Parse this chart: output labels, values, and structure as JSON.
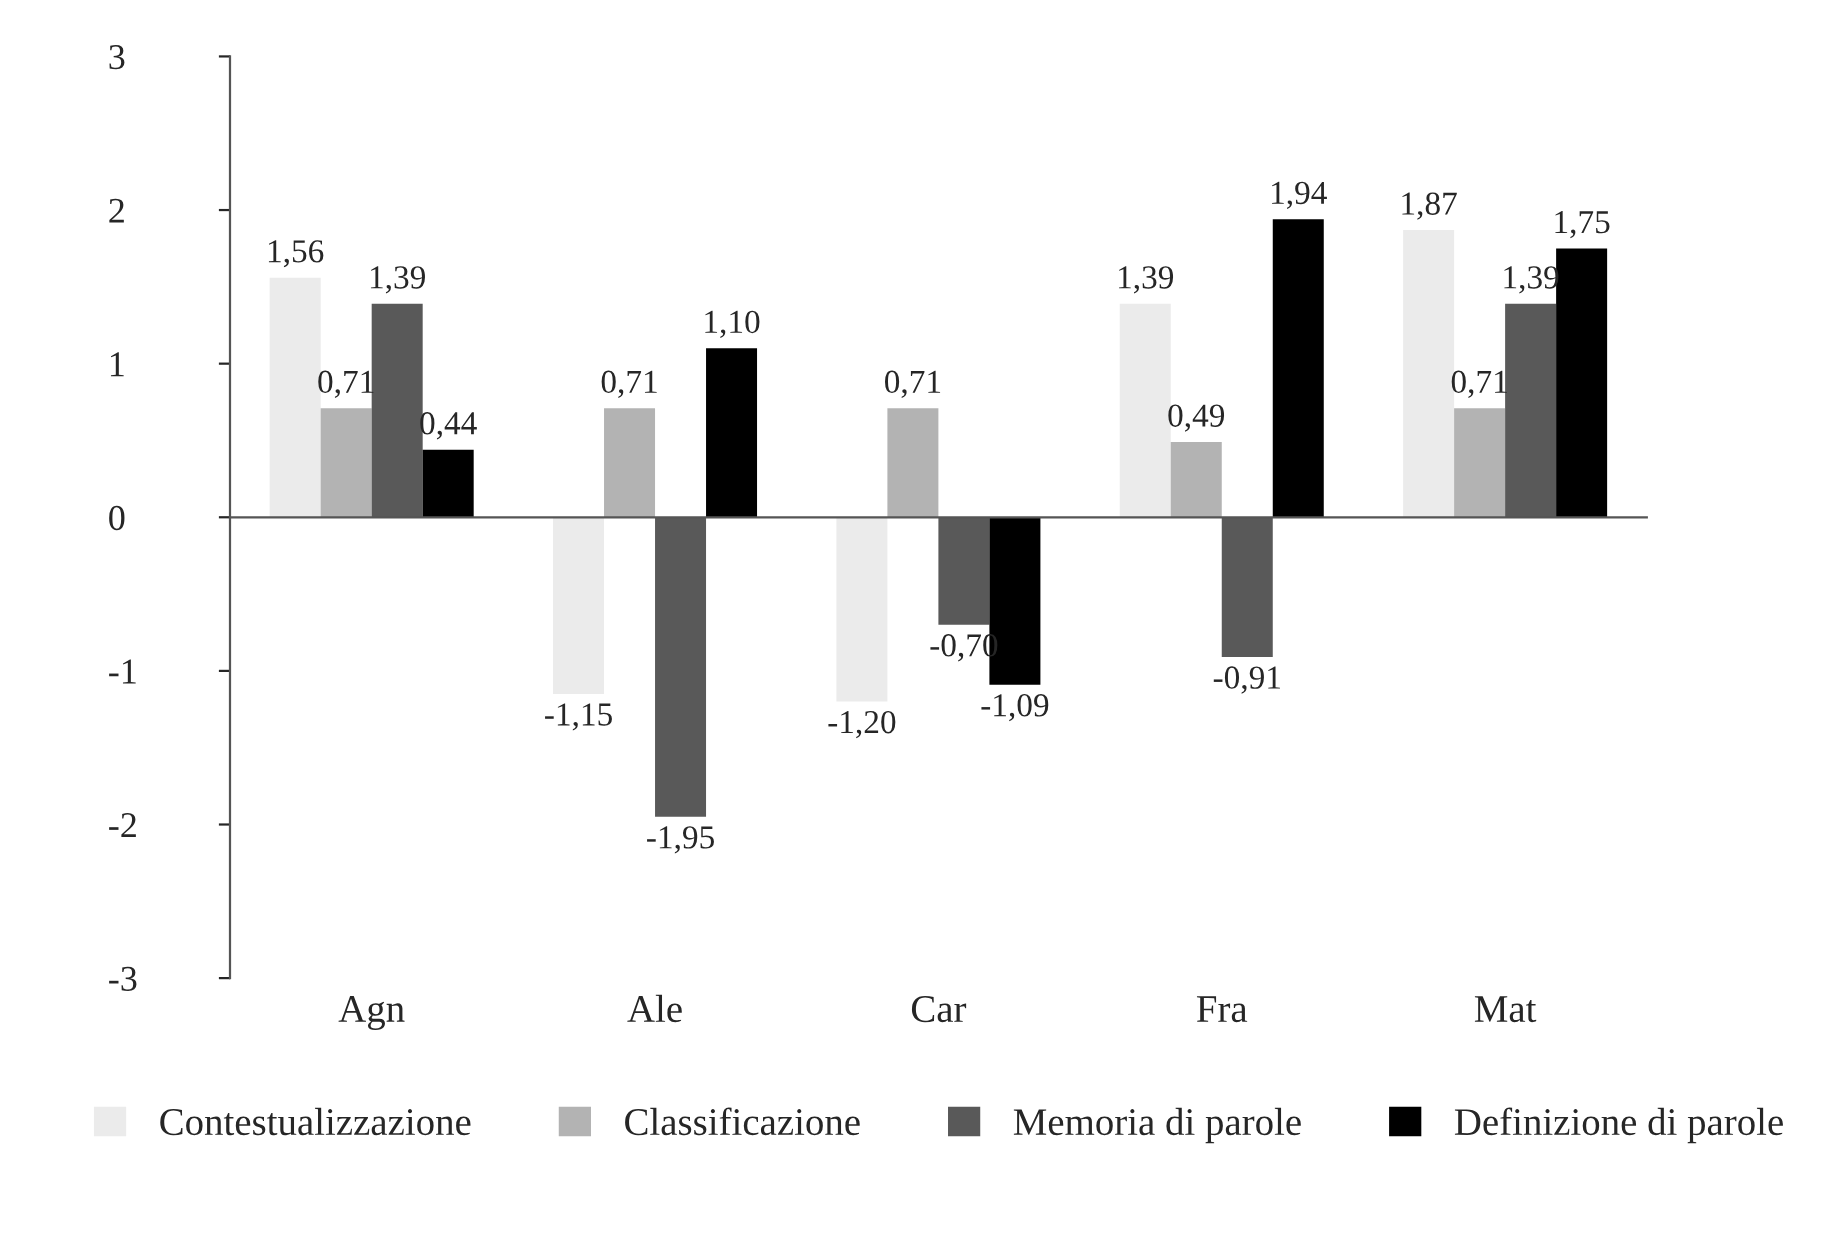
{
  "chart_data": {
    "type": "bar",
    "categories": [
      "Agn",
      "Ale",
      "Car",
      "Fra",
      "Mat"
    ],
    "series": [
      {
        "name": "Contestualizzazione",
        "color": "#ebebeb",
        "values": [
          1.56,
          -1.15,
          -1.2,
          1.39,
          1.87
        ],
        "value_labels": [
          "1,56",
          "-1,15",
          "-1,20",
          "1,39",
          "1,87"
        ]
      },
      {
        "name": "Classificazione",
        "color": "#b3b3b3",
        "values": [
          0.71,
          0.71,
          0.71,
          0.49,
          0.71
        ],
        "value_labels": [
          "0,71",
          "0,71",
          "0,71",
          "0,49",
          "0,71"
        ]
      },
      {
        "name": "Memoria di parole",
        "color": "#595959",
        "values": [
          1.39,
          -1.95,
          -0.7,
          -0.91,
          1.39
        ],
        "value_labels": [
          "1,39",
          "-1,95",
          "-0,70",
          "-0,91",
          "1,39"
        ]
      },
      {
        "name": "Definizione di parole",
        "color": "#000000",
        "values": [
          0.44,
          1.1,
          -1.09,
          1.94,
          1.75
        ],
        "value_labels": [
          "0,44",
          "1,10",
          "-1,09",
          "1,94",
          "1,75"
        ]
      }
    ],
    "ylim": [
      -3,
      3
    ],
    "yticks": [
      {
        "value": -3,
        "label": "-3"
      },
      {
        "value": -2,
        "label": "-2"
      },
      {
        "value": -1,
        "label": "-1"
      },
      0,
      1,
      2,
      3
    ],
    "legend": "bottom"
  }
}
